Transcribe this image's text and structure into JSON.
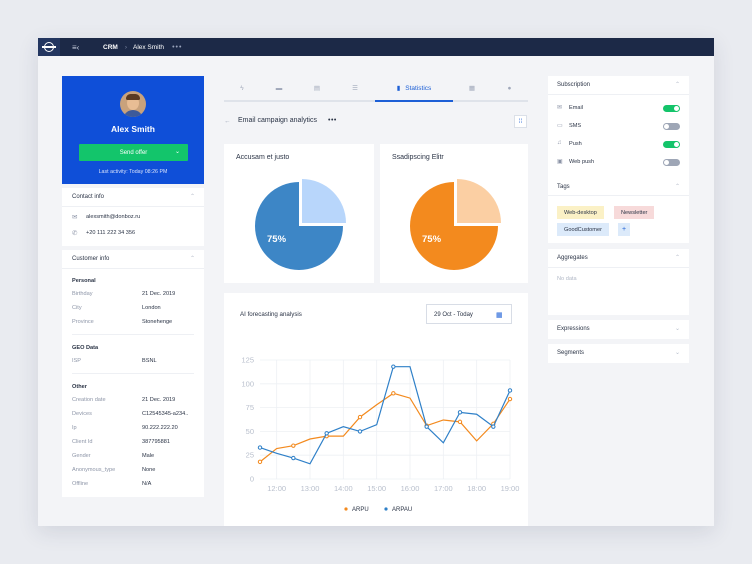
{
  "topbar": {
    "crumb_app": "CRM",
    "crumb_sep": "›",
    "crumb_user": "Alex Smith",
    "more": "•••",
    "menu_icon": "≡‹"
  },
  "profile": {
    "name": "Alex Smith",
    "send_button": "Send offer",
    "last_activity": "Last activity: Today 08:26 PM",
    "accent": "#0f4fd8",
    "button_color": "#13c56b"
  },
  "contact_info": {
    "title": "Contact info",
    "email": "alexsmith@donboz.ru",
    "phone": "+20 111 222 34 356"
  },
  "customer_info": {
    "title": "Customer info",
    "personal": {
      "heading": "Personal",
      "rows": [
        {
          "label": "Birthday",
          "value": "21 Dec. 2019"
        },
        {
          "label": "City",
          "value": "London"
        },
        {
          "label": "Province",
          "value": "Stonehenge"
        }
      ]
    },
    "geo": {
      "heading": "GEO Data",
      "rows": [
        {
          "label": "ISP",
          "value": "BSNL"
        }
      ]
    },
    "other": {
      "heading": "Other",
      "rows": [
        {
          "label": "Creation date",
          "value": "21 Dec. 2019"
        },
        {
          "label": "Devices",
          "value": "C12545345-a234.."
        },
        {
          "label": "Ip",
          "value": "90.222.222.20"
        },
        {
          "label": "Client Id",
          "value": "387795881"
        },
        {
          "label": "Gender",
          "value": "Male"
        },
        {
          "label": "Anonymous_type",
          "value": "None"
        },
        {
          "label": "Offline",
          "value": "N/A"
        }
      ]
    }
  },
  "tabs": [
    {
      "icon": "lightning-icon",
      "label": ""
    },
    {
      "icon": "chat-icon",
      "label": ""
    },
    {
      "icon": "note-icon",
      "label": ""
    },
    {
      "icon": "list-icon",
      "label": ""
    },
    {
      "icon": "bar-chart-icon",
      "label": "Statistics",
      "active": true
    },
    {
      "icon": "gift-icon",
      "label": ""
    },
    {
      "icon": "comment-icon",
      "label": ""
    }
  ],
  "page": {
    "title": "Email campaign analytics",
    "more": "•••"
  },
  "pies": [
    {
      "title": "Accusam et justo",
      "percent_label": "75%",
      "color": "#3d86c6",
      "light": "#b8d6fb"
    },
    {
      "title": "Ssadipscing Elitr",
      "percent_label": "75%",
      "color": "#f38a1e",
      "light": "#fbcfa3"
    }
  ],
  "forecast": {
    "title": "AI forecasting analysis",
    "date_range": "29 Oct - Today"
  },
  "chart_data": {
    "type": "line",
    "title": "AI forecasting analysis",
    "xlabel": "",
    "ylabel": "",
    "x_ticks": [
      "12:00",
      "13:00",
      "14:00",
      "15:00",
      "16:00",
      "17:00",
      "18:00",
      "19:00"
    ],
    "y_ticks": [
      "0",
      "25",
      "50",
      "75",
      "100",
      "125"
    ],
    "ylim": [
      0,
      125
    ],
    "x": [
      11.5,
      12.0,
      12.5,
      13.0,
      13.5,
      14.0,
      14.5,
      15.0,
      15.5,
      16.0,
      16.5,
      17.0,
      17.5,
      18.0,
      18.5,
      19.0
    ],
    "series": [
      {
        "name": "ARPU",
        "color": "#f38a1e",
        "values": [
          18,
          32,
          35,
          42,
          45,
          45,
          65,
          78,
          90,
          85,
          56,
          62,
          60,
          40,
          58,
          84
        ]
      },
      {
        "name": "ARPAU",
        "color": "#2f80c8",
        "values": [
          33,
          27,
          22,
          16,
          48,
          55,
          50,
          57,
          118,
          118,
          55,
          38,
          70,
          68,
          55,
          93
        ]
      }
    ],
    "grid": true,
    "legend": "bottom"
  },
  "subscription": {
    "title": "Subscription",
    "items": [
      {
        "icon": "mail-icon",
        "label": "Email",
        "on": true
      },
      {
        "icon": "sms-icon",
        "label": "SMS",
        "on": false
      },
      {
        "icon": "bell-icon",
        "label": "Push",
        "on": true
      },
      {
        "icon": "web-icon",
        "label": "Web push",
        "on": false
      }
    ]
  },
  "tags": {
    "title": "Tags",
    "items": [
      {
        "label": "Web-desktop",
        "bg": "#fbf1c6"
      },
      {
        "label": "Newsletter",
        "bg": "#f7dada"
      },
      {
        "label": "GoodCustomer",
        "bg": "#dceafa"
      }
    ],
    "add": "+"
  },
  "aggregates": {
    "title": "Aggregates",
    "empty": "No data"
  },
  "expressions": {
    "title": "Expressions"
  },
  "segments": {
    "title": "Segments"
  }
}
